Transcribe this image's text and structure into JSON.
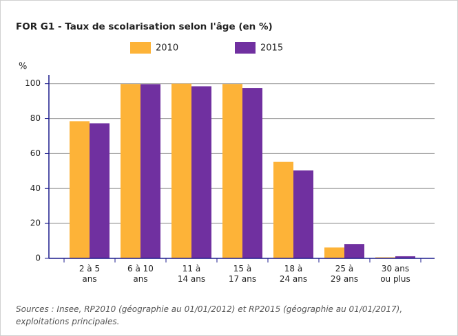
{
  "chart_data": {
    "type": "bar",
    "title": "FOR G1 - Taux de scolarisation selon l'âge (en %)",
    "y_label": "%",
    "categories": [
      "2 à 5\nans",
      "6 à 10\nans",
      "11 à\n14 ans",
      "15 à\n17 ans",
      "18 à\n24 ans",
      "25 à\n29 ans",
      "30 ans\nou plus"
    ],
    "series": [
      {
        "name": "2010",
        "color": "#fdb338",
        "values": [
          78.5,
          99.8,
          100,
          99.8,
          55.2,
          6.2,
          0.6
        ]
      },
      {
        "name": "2015",
        "color": "#7030a0",
        "values": [
          77.3,
          99.7,
          98.5,
          97.5,
          50.3,
          8.2,
          1.2
        ]
      }
    ],
    "ylim": [
      0,
      105
    ],
    "yticks": [
      0,
      20,
      40,
      60,
      80,
      100
    ],
    "grid": true,
    "source": "Sources : Insee, RP2010 (géographie au 01/01/2012) et RP2015 (géographie au 01/01/2017),\nexploitations principales."
  }
}
